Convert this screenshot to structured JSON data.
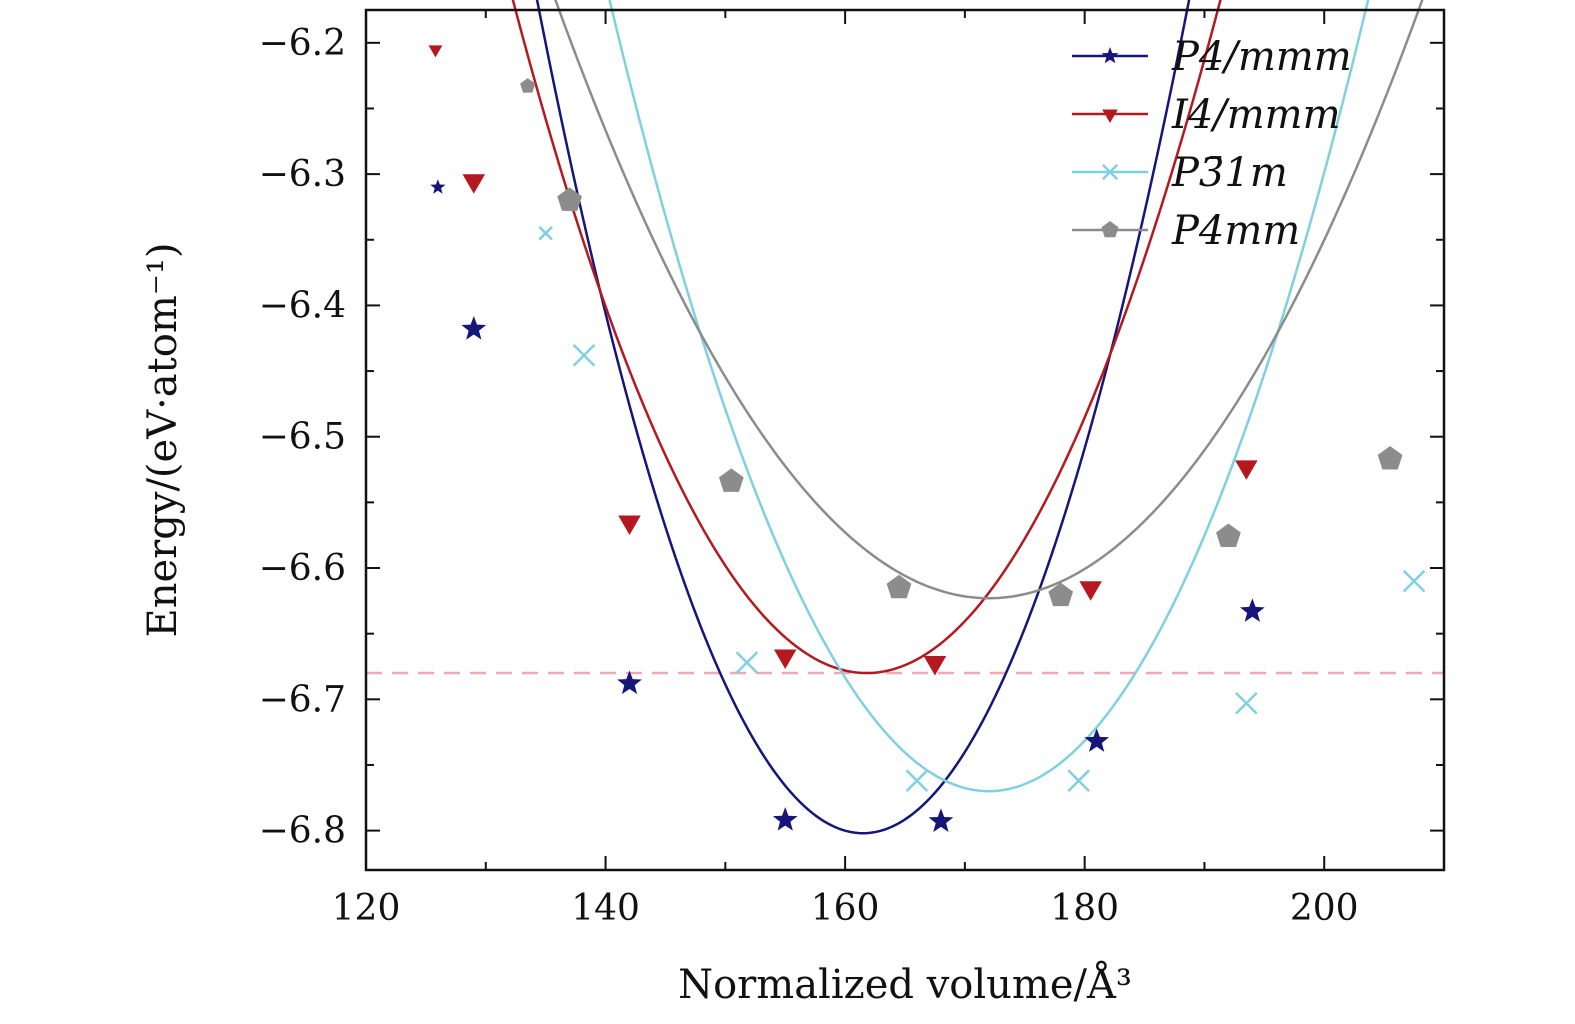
{
  "chart_data": {
    "type": "line",
    "title": "",
    "xlabel": "Normalized volume/Å³",
    "ylabel": "Energy/(eV·atom⁻¹)",
    "xlim": [
      120,
      210
    ],
    "ylim": [
      -6.83,
      -6.175
    ],
    "xticks": [
      120,
      140,
      160,
      180,
      200
    ],
    "xtick_labels": [
      "120",
      "140",
      "160",
      "180",
      "200"
    ],
    "yticks": [
      -6.2,
      -6.3,
      -6.4,
      -6.5,
      -6.6,
      -6.7,
      -6.8
    ],
    "ytick_labels": [
      "−6.2",
      "−6.3",
      "−6.4",
      "−6.5",
      "−6.6",
      "−6.7",
      "−6.8"
    ],
    "x_minor_step": 10,
    "y_minor_step": 0.05,
    "legend_position": "top-right",
    "reference_line": {
      "y": -6.68,
      "style": "dashed",
      "color": "#f0a8b4"
    },
    "series": [
      {
        "name": "P4/mmm",
        "color": "#15157a",
        "marker": "star",
        "x": [
          126,
          129,
          142,
          155,
          168,
          181,
          194
        ],
        "y": [
          -6.31,
          -6.418,
          -6.688,
          -6.792,
          -6.793,
          -6.732,
          -6.633
        ],
        "curve": {
          "a": 0.0008567,
          "x0": 161.5,
          "y0": -6.802,
          "x_start": 126,
          "x_end": 197
        }
      },
      {
        "name": "I4/mmm",
        "color": "#b5191f",
        "marker": "triangle-down",
        "x": [
          125.8,
          129,
          142,
          155,
          167.5,
          180.5,
          193.5
        ],
        "y": [
          -6.205,
          -6.305,
          -6.565,
          -6.667,
          -6.672,
          -6.615,
          -6.523
        ],
        "curve": {
          "a": 0.0005876,
          "x0": 161.8,
          "y0": -6.68,
          "x_start": 125.8,
          "x_end": 197
        }
      },
      {
        "name": "P3̄1m",
        "color": "#7fd0e3",
        "marker": "cross",
        "x": [
          135,
          138.2,
          151.8,
          166,
          179.5,
          193.5,
          207.5
        ],
        "y": [
          -6.345,
          -6.438,
          -6.672,
          -6.762,
          -6.762,
          -6.703,
          -6.61
        ],
        "curve": {
          "a": 0.000601,
          "x0": 172,
          "y0": -6.77,
          "x_start": 135,
          "x_end": 210
        }
      },
      {
        "name": "P4mm",
        "color": "#8c8c8c",
        "marker": "pentagon",
        "x": [
          133.5,
          137,
          150.5,
          164.5,
          178,
          192,
          205.5
        ],
        "y": [
          -6.233,
          -6.32,
          -6.534,
          -6.615,
          -6.621,
          -6.576,
          -6.517
        ],
        "curve": {
          "a": 0.000348,
          "x0": 172,
          "y0": -6.623,
          "x_start": 133.5,
          "x_end": 209
        }
      }
    ]
  }
}
